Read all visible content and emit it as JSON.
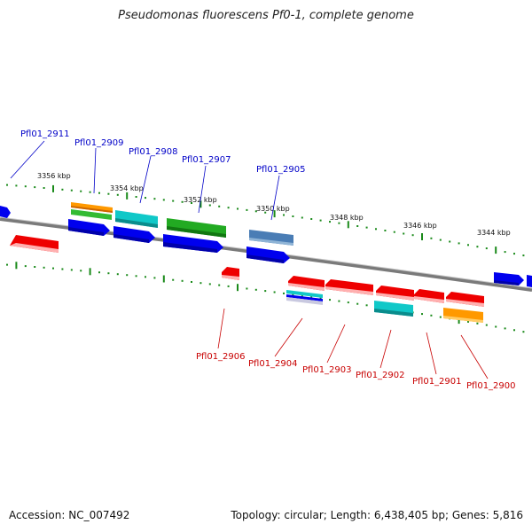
{
  "title": "Pseudomonas fluorescens Pf0-1, complete genome",
  "accession": "Accession: NC_007492",
  "summary": "Topology: circular; Length: 6,438,405 bp; Genes: 5,816",
  "scale_labels": [
    "3356 kbp",
    "3354 kbp",
    "3352 kbp",
    "3350 kbp",
    "3348 kbp",
    "3346 kbp",
    "3344 kbp"
  ],
  "gene_labels_top": [
    "Pfl01_2911",
    "Pfl01_2909",
    "Pfl01_2908",
    "Pfl01_2907",
    "Pfl01_2905"
  ],
  "gene_labels_bottom": [
    "Pfl01_2906",
    "Pfl01_2904",
    "Pfl01_2903",
    "Pfl01_2902",
    "Pfl01_2901",
    "Pfl01_2900"
  ],
  "colors": {
    "blue": "#0000ee",
    "red": "#ee0000",
    "cyan": "#10c8c8",
    "green": "#22aa22",
    "orange": "#ff9900",
    "steel": "#4a7db5",
    "tick": "#1a8a1a",
    "backbone": "#7a7a7a",
    "top_label": "#0000c8",
    "bottom_label": "#c80000"
  }
}
